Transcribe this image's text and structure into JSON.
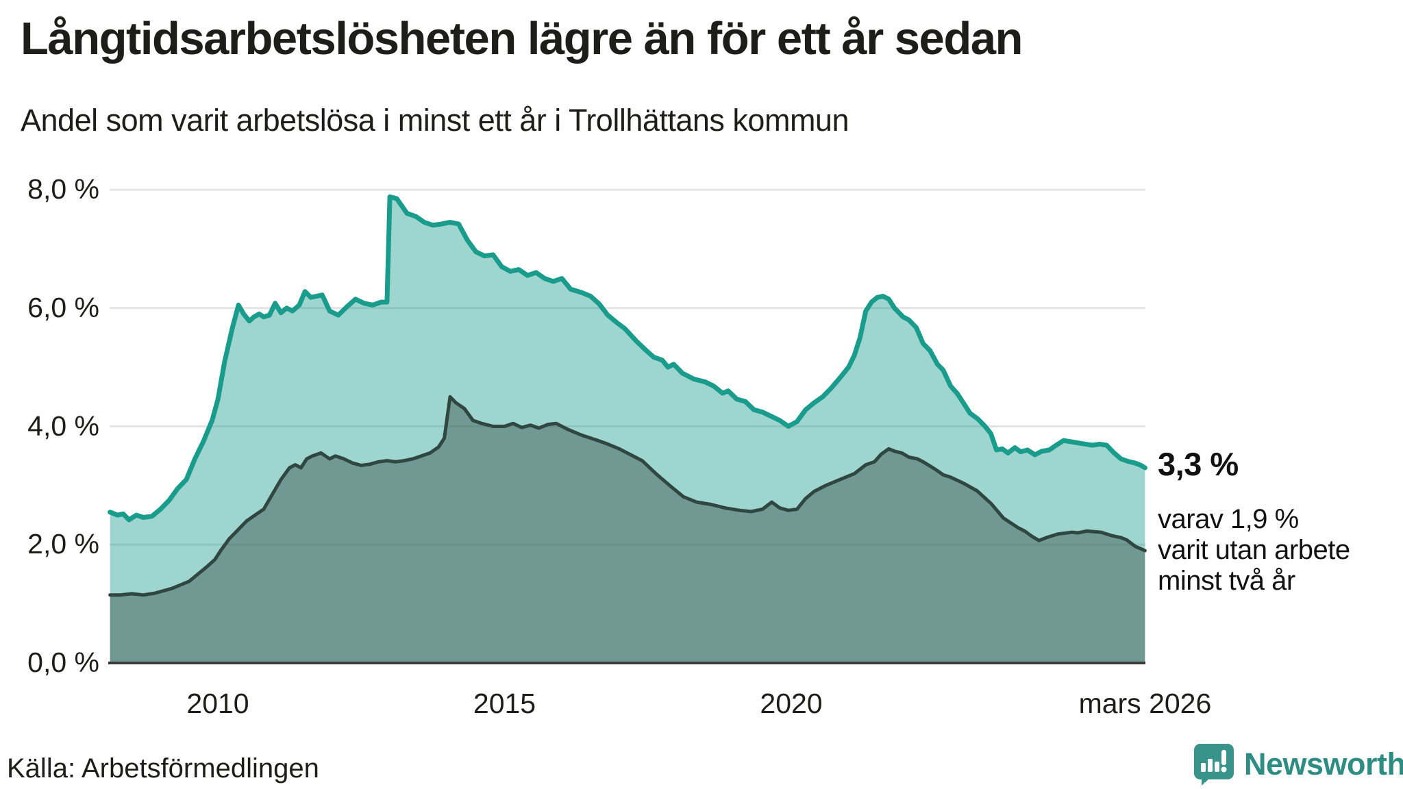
{
  "header": {
    "title": "Långtidsarbetslösheten lägre än för ett år sedan",
    "subtitle": "Andel som varit arbetslösa i minst ett år i Trollhättans kommun"
  },
  "annotations": {
    "latest_total": "3,3 %",
    "secondary_line1": "varav 1,9 %",
    "secondary_line2": "varit utan arbete",
    "secondary_line3": "minst två år"
  },
  "footer": {
    "source": "Källa: Arbetsförmedlingen",
    "brand": "Newsworthy"
  },
  "colors": {
    "accent_teal": "#1a9c8d",
    "accent_teal_fill": "rgba(26,156,141,0.42)",
    "dark_green": "#2f4740",
    "dark_green_fill": "rgba(47,71,64,0.42)",
    "gridline": "#e4e4e4",
    "axis": "#3a3a3a",
    "text": "#1d1d1b",
    "brand_teal": "#2e8d83",
    "logo_bubble": "#38948b"
  },
  "chart_data": {
    "type": "area",
    "title": "Långtidsarbetslösheten lägre än för ett år sedan",
    "subtitle": "Andel som varit arbetslösa i minst ett år i Trollhättans kommun",
    "unit": "%",
    "ylim": [
      0,
      8
    ],
    "grid": true,
    "legend_position": "none",
    "x_range": [
      2008.1,
      2026.17
    ],
    "y_ticks": [
      {
        "value": 0,
        "label": "0,0 %"
      },
      {
        "value": 2,
        "label": "2,0 %"
      },
      {
        "value": 4,
        "label": "4,0 %"
      },
      {
        "value": 6,
        "label": "6,0 %"
      },
      {
        "value": 8,
        "label": "8,0 %"
      }
    ],
    "x_ticks": [
      {
        "t": 2010,
        "label": "2010"
      },
      {
        "t": 2015,
        "label": "2015"
      },
      {
        "t": 2020,
        "label": "2020"
      },
      {
        "t": 2026.17,
        "label": "mars 2026"
      }
    ],
    "series": [
      {
        "name": "Arbetslösa minst ett år",
        "latest_label": "3,3 %",
        "latest_value": 3.3,
        "color": "#1a9c8d",
        "fill": "rgba(26,156,141,0.42)",
        "stroke_width": 7,
        "points": [
          [
            2008.12,
            2.55
          ],
          [
            2008.25,
            2.5
          ],
          [
            2008.35,
            2.52
          ],
          [
            2008.45,
            2.42
          ],
          [
            2008.58,
            2.5
          ],
          [
            2008.7,
            2.46
          ],
          [
            2008.85,
            2.48
          ],
          [
            2009.0,
            2.6
          ],
          [
            2009.15,
            2.75
          ],
          [
            2009.3,
            2.95
          ],
          [
            2009.45,
            3.1
          ],
          [
            2009.6,
            3.45
          ],
          [
            2009.75,
            3.75
          ],
          [
            2009.9,
            4.1
          ],
          [
            2010.0,
            4.45
          ],
          [
            2010.12,
            5.1
          ],
          [
            2010.25,
            5.65
          ],
          [
            2010.36,
            6.05
          ],
          [
            2010.45,
            5.9
          ],
          [
            2010.55,
            5.78
          ],
          [
            2010.63,
            5.85
          ],
          [
            2010.72,
            5.9
          ],
          [
            2010.8,
            5.85
          ],
          [
            2010.9,
            5.88
          ],
          [
            2011.0,
            6.08
          ],
          [
            2011.1,
            5.92
          ],
          [
            2011.2,
            6.0
          ],
          [
            2011.3,
            5.95
          ],
          [
            2011.42,
            6.05
          ],
          [
            2011.52,
            6.28
          ],
          [
            2011.62,
            6.18
          ],
          [
            2011.72,
            6.2
          ],
          [
            2011.82,
            6.22
          ],
          [
            2011.95,
            5.95
          ],
          [
            2012.1,
            5.88
          ],
          [
            2012.25,
            6.02
          ],
          [
            2012.4,
            6.15
          ],
          [
            2012.55,
            6.08
          ],
          [
            2012.7,
            6.05
          ],
          [
            2012.85,
            6.1
          ],
          [
            2012.95,
            6.1
          ],
          [
            2013.0,
            7.88
          ],
          [
            2013.12,
            7.85
          ],
          [
            2013.3,
            7.6
          ],
          [
            2013.45,
            7.55
          ],
          [
            2013.6,
            7.45
          ],
          [
            2013.75,
            7.4
          ],
          [
            2013.9,
            7.42
          ],
          [
            2014.05,
            7.45
          ],
          [
            2014.2,
            7.42
          ],
          [
            2014.35,
            7.15
          ],
          [
            2014.5,
            6.95
          ],
          [
            2014.65,
            6.88
          ],
          [
            2014.8,
            6.9
          ],
          [
            2014.95,
            6.7
          ],
          [
            2015.1,
            6.62
          ],
          [
            2015.25,
            6.65
          ],
          [
            2015.4,
            6.55
          ],
          [
            2015.55,
            6.6
          ],
          [
            2015.7,
            6.5
          ],
          [
            2015.85,
            6.45
          ],
          [
            2016.0,
            6.5
          ],
          [
            2016.15,
            6.32
          ],
          [
            2016.35,
            6.26
          ],
          [
            2016.5,
            6.2
          ],
          [
            2016.65,
            6.07
          ],
          [
            2016.8,
            5.88
          ],
          [
            2016.95,
            5.76
          ],
          [
            2017.1,
            5.65
          ],
          [
            2017.3,
            5.44
          ],
          [
            2017.45,
            5.3
          ],
          [
            2017.6,
            5.17
          ],
          [
            2017.75,
            5.12
          ],
          [
            2017.85,
            5.0
          ],
          [
            2017.95,
            5.05
          ],
          [
            2018.1,
            4.9
          ],
          [
            2018.3,
            4.8
          ],
          [
            2018.5,
            4.75
          ],
          [
            2018.65,
            4.68
          ],
          [
            2018.8,
            4.56
          ],
          [
            2018.9,
            4.6
          ],
          [
            2019.05,
            4.46
          ],
          [
            2019.2,
            4.42
          ],
          [
            2019.35,
            4.28
          ],
          [
            2019.5,
            4.24
          ],
          [
            2019.65,
            4.17
          ],
          [
            2019.8,
            4.1
          ],
          [
            2019.95,
            4.0
          ],
          [
            2020.1,
            4.08
          ],
          [
            2020.25,
            4.28
          ],
          [
            2020.4,
            4.4
          ],
          [
            2020.55,
            4.5
          ],
          [
            2020.7,
            4.65
          ],
          [
            2020.85,
            4.82
          ],
          [
            2021.0,
            5.0
          ],
          [
            2021.1,
            5.2
          ],
          [
            2021.2,
            5.5
          ],
          [
            2021.3,
            5.95
          ],
          [
            2021.4,
            6.1
          ],
          [
            2021.5,
            6.18
          ],
          [
            2021.6,
            6.2
          ],
          [
            2021.7,
            6.15
          ],
          [
            2021.8,
            6.0
          ],
          [
            2021.95,
            5.85
          ],
          [
            2022.05,
            5.8
          ],
          [
            2022.18,
            5.67
          ],
          [
            2022.3,
            5.4
          ],
          [
            2022.42,
            5.28
          ],
          [
            2022.55,
            5.05
          ],
          [
            2022.65,
            4.95
          ],
          [
            2022.78,
            4.68
          ],
          [
            2022.9,
            4.55
          ],
          [
            2023.0,
            4.4
          ],
          [
            2023.12,
            4.22
          ],
          [
            2023.25,
            4.13
          ],
          [
            2023.38,
            4.0
          ],
          [
            2023.48,
            3.88
          ],
          [
            2023.58,
            3.6
          ],
          [
            2023.68,
            3.62
          ],
          [
            2023.78,
            3.55
          ],
          [
            2023.9,
            3.64
          ],
          [
            2024.0,
            3.57
          ],
          [
            2024.12,
            3.6
          ],
          [
            2024.25,
            3.52
          ],
          [
            2024.37,
            3.58
          ],
          [
            2024.5,
            3.6
          ],
          [
            2024.62,
            3.68
          ],
          [
            2024.75,
            3.76
          ],
          [
            2024.88,
            3.74
          ],
          [
            2025.0,
            3.72
          ],
          [
            2025.13,
            3.7
          ],
          [
            2025.25,
            3.68
          ],
          [
            2025.38,
            3.7
          ],
          [
            2025.5,
            3.68
          ],
          [
            2025.62,
            3.56
          ],
          [
            2025.75,
            3.45
          ],
          [
            2025.87,
            3.41
          ],
          [
            2026.0,
            3.38
          ],
          [
            2026.1,
            3.34
          ],
          [
            2026.17,
            3.3
          ]
        ]
      },
      {
        "name": "Varav utan arbete minst två år",
        "latest_label": "1,9 %",
        "latest_value": 1.9,
        "color": "#2f4740",
        "fill": "rgba(47,71,64,0.42)",
        "stroke_width": 5,
        "points": [
          [
            2008.12,
            1.15
          ],
          [
            2008.3,
            1.15
          ],
          [
            2008.5,
            1.17
          ],
          [
            2008.7,
            1.15
          ],
          [
            2008.9,
            1.18
          ],
          [
            2009.05,
            1.22
          ],
          [
            2009.2,
            1.26
          ],
          [
            2009.35,
            1.32
          ],
          [
            2009.5,
            1.38
          ],
          [
            2009.65,
            1.5
          ],
          [
            2009.8,
            1.62
          ],
          [
            2009.95,
            1.75
          ],
          [
            2010.05,
            1.9
          ],
          [
            2010.2,
            2.1
          ],
          [
            2010.35,
            2.25
          ],
          [
            2010.5,
            2.4
          ],
          [
            2010.65,
            2.5
          ],
          [
            2010.8,
            2.6
          ],
          [
            2010.95,
            2.85
          ],
          [
            2011.1,
            3.1
          ],
          [
            2011.25,
            3.3
          ],
          [
            2011.35,
            3.35
          ],
          [
            2011.45,
            3.3
          ],
          [
            2011.55,
            3.45
          ],
          [
            2011.65,
            3.5
          ],
          [
            2011.8,
            3.55
          ],
          [
            2011.95,
            3.45
          ],
          [
            2012.05,
            3.5
          ],
          [
            2012.2,
            3.45
          ],
          [
            2012.35,
            3.38
          ],
          [
            2012.5,
            3.34
          ],
          [
            2012.65,
            3.36
          ],
          [
            2012.8,
            3.4
          ],
          [
            2012.95,
            3.42
          ],
          [
            2013.1,
            3.4
          ],
          [
            2013.25,
            3.42
          ],
          [
            2013.4,
            3.45
          ],
          [
            2013.55,
            3.5
          ],
          [
            2013.7,
            3.55
          ],
          [
            2013.85,
            3.65
          ],
          [
            2013.95,
            3.8
          ],
          [
            2014.05,
            4.5
          ],
          [
            2014.15,
            4.4
          ],
          [
            2014.3,
            4.3
          ],
          [
            2014.45,
            4.1
          ],
          [
            2014.6,
            4.05
          ],
          [
            2014.8,
            4.0
          ],
          [
            2015.0,
            4.0
          ],
          [
            2015.15,
            4.05
          ],
          [
            2015.3,
            3.98
          ],
          [
            2015.45,
            4.02
          ],
          [
            2015.6,
            3.97
          ],
          [
            2015.75,
            4.03
          ],
          [
            2015.9,
            4.05
          ],
          [
            2016.1,
            3.95
          ],
          [
            2016.35,
            3.85
          ],
          [
            2016.6,
            3.77
          ],
          [
            2016.8,
            3.7
          ],
          [
            2017.0,
            3.62
          ],
          [
            2017.2,
            3.52
          ],
          [
            2017.4,
            3.42
          ],
          [
            2017.64,
            3.2
          ],
          [
            2017.88,
            3.0
          ],
          [
            2018.12,
            2.81
          ],
          [
            2018.35,
            2.72
          ],
          [
            2018.6,
            2.68
          ],
          [
            2018.85,
            2.62
          ],
          [
            2019.1,
            2.58
          ],
          [
            2019.3,
            2.56
          ],
          [
            2019.5,
            2.6
          ],
          [
            2019.66,
            2.72
          ],
          [
            2019.8,
            2.62
          ],
          [
            2019.95,
            2.58
          ],
          [
            2020.1,
            2.6
          ],
          [
            2020.25,
            2.78
          ],
          [
            2020.4,
            2.9
          ],
          [
            2020.6,
            3.0
          ],
          [
            2020.85,
            3.1
          ],
          [
            2021.1,
            3.2
          ],
          [
            2021.3,
            3.35
          ],
          [
            2021.45,
            3.4
          ],
          [
            2021.57,
            3.53
          ],
          [
            2021.7,
            3.62
          ],
          [
            2021.8,
            3.58
          ],
          [
            2021.93,
            3.55
          ],
          [
            2022.05,
            3.48
          ],
          [
            2022.2,
            3.45
          ],
          [
            2022.3,
            3.4
          ],
          [
            2022.42,
            3.33
          ],
          [
            2022.55,
            3.25
          ],
          [
            2022.65,
            3.18
          ],
          [
            2022.78,
            3.14
          ],
          [
            2023.0,
            3.04
          ],
          [
            2023.24,
            2.91
          ],
          [
            2023.48,
            2.7
          ],
          [
            2023.7,
            2.45
          ],
          [
            2023.95,
            2.29
          ],
          [
            2024.07,
            2.23
          ],
          [
            2024.2,
            2.14
          ],
          [
            2024.32,
            2.07
          ],
          [
            2024.45,
            2.12
          ],
          [
            2024.65,
            2.18
          ],
          [
            2024.9,
            2.21
          ],
          [
            2025.0,
            2.2
          ],
          [
            2025.15,
            2.23
          ],
          [
            2025.4,
            2.21
          ],
          [
            2025.6,
            2.15
          ],
          [
            2025.75,
            2.12
          ],
          [
            2025.85,
            2.08
          ],
          [
            2026.0,
            1.97
          ],
          [
            2026.17,
            1.9
          ]
        ]
      }
    ]
  }
}
